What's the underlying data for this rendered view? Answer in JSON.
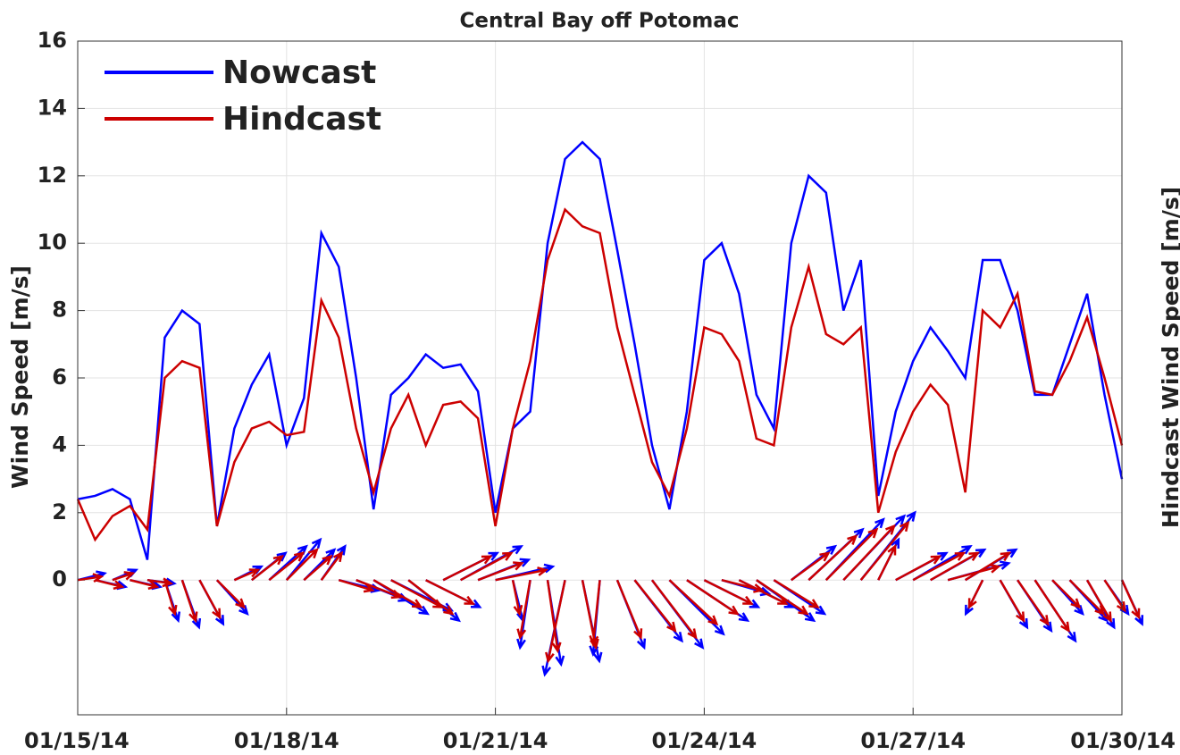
{
  "chart_data": {
    "type": "line",
    "title": "Central Bay off Potomac",
    "ylabel": "Wind Speed [m/s]",
    "y2label": "Hindcast Wind Speed [m/s]",
    "x": [
      0,
      0.25,
      0.5,
      0.75,
      1,
      1.25,
      1.5,
      1.75,
      2,
      2.25,
      2.5,
      2.75,
      3,
      3.25,
      3.5,
      3.75,
      4,
      4.25,
      4.5,
      4.75,
      5,
      5.25,
      5.5,
      5.75,
      6,
      6.25,
      6.5,
      6.75,
      7,
      7.25,
      7.5,
      7.75,
      8,
      8.25,
      8.5,
      8.75,
      9,
      9.25,
      9.5,
      9.75,
      10,
      10.25,
      10.5,
      10.75,
      11,
      11.25,
      11.5,
      11.75,
      12,
      12.25,
      12.5,
      12.75,
      13,
      13.25,
      13.5,
      13.75,
      14,
      14.25,
      14.5,
      14.75,
      15
    ],
    "xlim": [
      0,
      15
    ],
    "xticks": [
      {
        "value": 0,
        "label": "01/15/14"
      },
      {
        "value": 3,
        "label": "01/18/14"
      },
      {
        "value": 6,
        "label": "01/21/14"
      },
      {
        "value": 9,
        "label": "01/24/14"
      },
      {
        "value": 12,
        "label": "01/27/14"
      },
      {
        "value": 15,
        "label": "01/30/14"
      }
    ],
    "ylim": [
      -4,
      16
    ],
    "yticks": [
      0,
      2,
      4,
      6,
      8,
      10,
      12,
      14,
      16
    ],
    "grid": true,
    "legend": "upper left",
    "series": [
      {
        "name": "Nowcast",
        "color": "#0000ff",
        "values": [
          2.4,
          2.5,
          2.7,
          2.4,
          0.6,
          7.2,
          8.0,
          7.6,
          1.6,
          4.5,
          5.8,
          6.7,
          4.0,
          5.4,
          10.3,
          9.3,
          6.0,
          2.1,
          5.5,
          6.0,
          6.7,
          6.3,
          6.4,
          5.6,
          2.0,
          4.5,
          5.0,
          10.0,
          12.5,
          13.0,
          12.5,
          9.8,
          7.0,
          4.0,
          2.1,
          5.0,
          9.5,
          10.0,
          8.5,
          5.5,
          4.5,
          10.0,
          12.0,
          11.5,
          8.0,
          9.5,
          2.5,
          5.0,
          6.5,
          7.5,
          6.8,
          6.0,
          9.5,
          9.5,
          8.0,
          5.5,
          5.5,
          7.0,
          8.5,
          5.5,
          3.0
        ],
        "u": [
          0.8,
          0.9,
          0.7,
          0.9,
          0.8,
          0.4,
          0.5,
          0.7,
          0.9,
          0.8,
          1.0,
          1.1,
          1.0,
          0.9,
          0.7,
          1.2,
          1.5,
          1.6,
          1.8,
          1.5,
          1.6,
          1.6,
          1.8,
          1.5,
          1.7,
          0.3,
          -0.3,
          0.4,
          -0.6,
          0.5,
          -0.2,
          0.8,
          1.4,
          1.5,
          1.6,
          1.8,
          1.6,
          1.4,
          1.6,
          1.7,
          1.5,
          1.3,
          1.6,
          1.7,
          1.8,
          1.6,
          0.6,
          1.5,
          1.7,
          1.6,
          1.8,
          1.5,
          -0.5,
          0.8,
          1.0,
          1.2,
          0.9,
          1.1,
          0.8,
          0.7,
          0.6
        ],
        "v": [
          0.2,
          -0.2,
          0.3,
          -0.2,
          -0.1,
          -1.2,
          -1.4,
          -1.3,
          -1.0,
          0.4,
          0.8,
          1.0,
          1.2,
          0.9,
          1.0,
          -0.3,
          -0.6,
          -1.0,
          -0.9,
          -1.2,
          -0.8,
          0.8,
          1.0,
          0.6,
          0.4,
          -1.2,
          -2.0,
          -2.5,
          -2.8,
          -2.4,
          -2.2,
          -2.0,
          -1.8,
          -2.0,
          -1.6,
          -1.2,
          -0.8,
          -0.4,
          -0.8,
          -1.2,
          -1.0,
          1.0,
          1.5,
          1.8,
          1.9,
          2.0,
          1.2,
          0.8,
          1.0,
          0.9,
          0.5,
          0.9,
          -1.0,
          -1.4,
          -1.5,
          -1.8,
          -1.0,
          -1.2,
          -1.4,
          -1.0,
          -1.3
        ]
      },
      {
        "name": "Hindcast",
        "color": "#cc0000",
        "values": [
          2.4,
          1.2,
          1.9,
          2.2,
          1.5,
          6.0,
          6.5,
          6.3,
          1.6,
          3.5,
          4.5,
          4.7,
          4.3,
          4.4,
          8.3,
          7.2,
          4.5,
          2.6,
          4.5,
          5.5,
          4.0,
          5.2,
          5.3,
          4.8,
          1.6,
          4.5,
          6.5,
          9.5,
          11.0,
          10.5,
          10.3,
          7.5,
          5.5,
          3.5,
          2.5,
          4.5,
          7.5,
          7.3,
          6.5,
          4.2,
          4.0,
          7.5,
          9.3,
          7.3,
          7.0,
          7.5,
          2.0,
          3.8,
          5.0,
          5.8,
          5.2,
          2.6,
          8.0,
          7.5,
          8.5,
          5.6,
          5.5,
          6.5,
          7.8,
          6.0,
          4.0
        ],
        "u": [
          0.7,
          0.8,
          0.6,
          0.8,
          0.7,
          0.3,
          0.4,
          0.6,
          0.8,
          0.7,
          0.9,
          1.0,
          0.9,
          0.8,
          0.6,
          1.0,
          1.3,
          1.4,
          1.5,
          1.3,
          1.4,
          1.4,
          1.5,
          1.3,
          1.5,
          0.2,
          -0.3,
          0.3,
          -0.5,
          0.4,
          -0.2,
          0.7,
          1.2,
          1.3,
          1.4,
          1.5,
          1.4,
          1.2,
          1.4,
          1.5,
          1.3,
          1.1,
          1.4,
          1.5,
          1.5,
          1.4,
          0.5,
          1.3,
          1.5,
          1.4,
          1.5,
          1.3,
          -0.4,
          0.7,
          0.9,
          1.0,
          0.8,
          1.0,
          0.7,
          0.6,
          0.5
        ],
        "v": [
          0.1,
          -0.2,
          0.2,
          -0.2,
          -0.1,
          -1.0,
          -1.2,
          -1.1,
          -0.8,
          0.3,
          0.7,
          0.8,
          0.9,
          0.7,
          0.8,
          -0.3,
          -0.5,
          -0.8,
          -0.8,
          -1.0,
          -0.7,
          0.7,
          0.8,
          0.5,
          0.3,
          -1.0,
          -1.7,
          -2.1,
          -2.4,
          -2.0,
          -1.9,
          -1.7,
          -1.5,
          -1.7,
          -1.3,
          -1.0,
          -0.7,
          -0.3,
          -0.7,
          -1.0,
          -0.8,
          0.8,
          1.3,
          1.5,
          1.6,
          1.7,
          1.0,
          0.7,
          0.8,
          0.8,
          0.4,
          0.8,
          -0.8,
          -1.2,
          -1.3,
          -1.5,
          -0.8,
          -1.0,
          -1.2,
          -0.9,
          -1.1
        ]
      }
    ]
  }
}
